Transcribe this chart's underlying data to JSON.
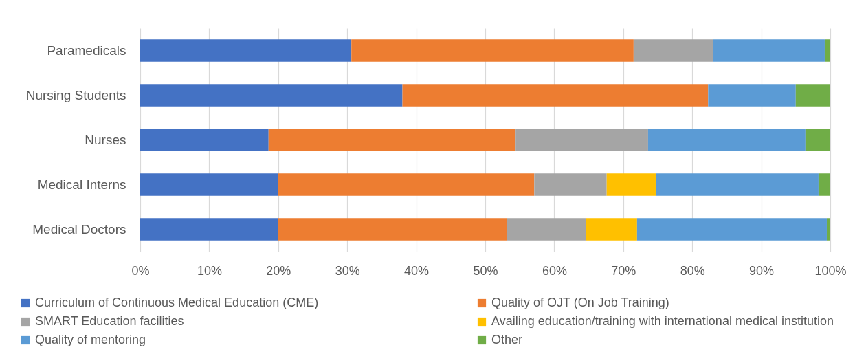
{
  "chart_data": {
    "type": "bar",
    "orientation": "horizontal",
    "stacked": true,
    "categories": [
      "Paramedicals",
      "Nursing Students",
      "Nurses",
      "Medical Interns",
      "Medical Doctors"
    ],
    "series": [
      {
        "name": "Curriculum of Continuous Medical Education (CME)",
        "color": "#4472c4",
        "values": [
          30.6,
          38.0,
          18.6,
          20.0,
          20.0
        ]
      },
      {
        "name": "Quality of OJT (On Job Training)",
        "color": "#ed7d31",
        "values": [
          40.9,
          44.3,
          35.8,
          37.1,
          33.1
        ]
      },
      {
        "name": "SMART Education facilities",
        "color": "#a5a5a5",
        "values": [
          11.5,
          null,
          19.2,
          10.5,
          11.5
        ]
      },
      {
        "name": "Availing education/training with international medical institution",
        "color": "#ffc000",
        "values": [
          null,
          null,
          null,
          7.1,
          7.4
        ]
      },
      {
        "name": "Quality of mentoring",
        "color": "#5b9bd5",
        "values": [
          16.2,
          12.7,
          22.8,
          23.6,
          27.5
        ]
      },
      {
        "name": "Other",
        "color": "#70ad47",
        "values": [
          0.8,
          5.0,
          3.6,
          1.7,
          0.5
        ]
      }
    ],
    "xlim": [
      0,
      100
    ],
    "xticks": [
      {
        "value": 0,
        "label": "0%"
      },
      {
        "value": 10,
        "label": "10%"
      },
      {
        "value": 20,
        "label": "20%"
      },
      {
        "value": 30,
        "label": "30%"
      },
      {
        "value": 40,
        "label": "40%"
      },
      {
        "value": 50,
        "label": "50%"
      },
      {
        "value": 60,
        "label": "60%"
      },
      {
        "value": 70,
        "label": "70%"
      },
      {
        "value": 80,
        "label": "80%"
      },
      {
        "value": 90,
        "label": "90%"
      },
      {
        "value": 100,
        "label": "100%"
      }
    ],
    "grid": "x",
    "legend": "bottom"
  }
}
